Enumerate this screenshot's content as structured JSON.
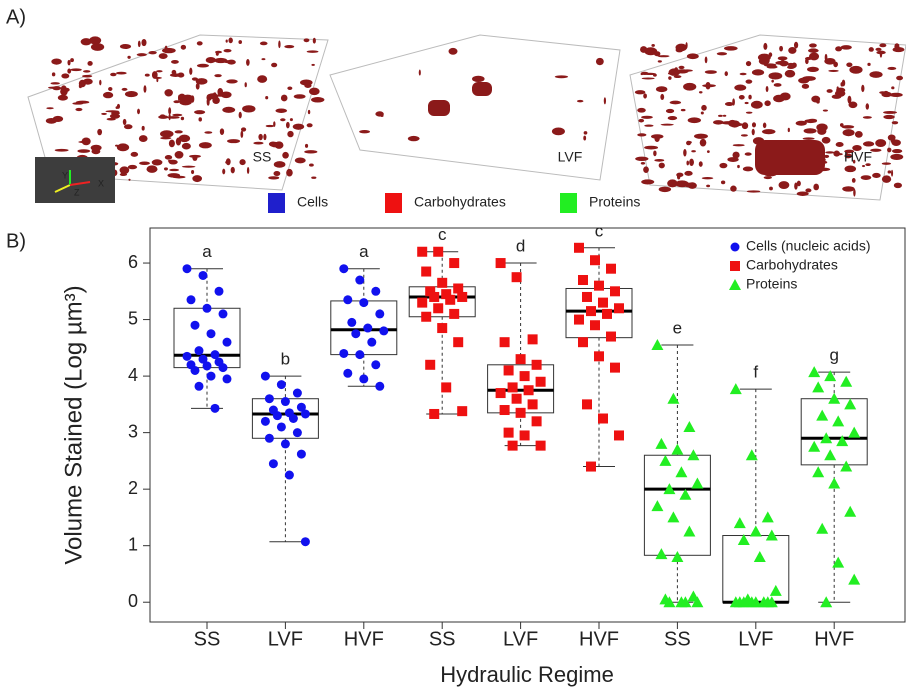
{
  "panel_a": {
    "label": "A)",
    "renders": [
      "SS",
      "LVF",
      "HVF"
    ],
    "axes_widget": [
      "Y",
      "Z",
      "X"
    ],
    "legend": [
      {
        "name": "Cells",
        "color": "#1f1fcc"
      },
      {
        "name": "Carbohydrates",
        "color": "#ee1111"
      },
      {
        "name": "Proteins",
        "color": "#22ee22"
      }
    ]
  },
  "panel_b_label": "B)",
  "chart_data": {
    "type": "box",
    "x_label": "Hydraulic Regime",
    "y_label": "Volume Stained (Log µm³)",
    "ylim": [
      -0.35,
      6.62
    ],
    "yticks": [
      0,
      1,
      2,
      3,
      4,
      5,
      6
    ],
    "legend": "top-right",
    "series": [
      {
        "name": "Cells (nucleic acids)",
        "color": "#1111ee",
        "marker": "circle",
        "categories": [
          "SS",
          "LVF",
          "HVF"
        ],
        "boxes": [
          {
            "min": 3.43,
            "q1": 4.15,
            "median": 4.37,
            "q3": 5.2,
            "max": 5.9,
            "letter": "a",
            "points": [
              5.9,
              5.78,
              5.5,
              5.35,
              5.2,
              5.1,
              4.9,
              4.75,
              4.6,
              4.45,
              4.38,
              4.35,
              4.3,
              4.25,
              4.2,
              4.18,
              4.15,
              4.1,
              4.0,
              3.95,
              3.82,
              3.43
            ]
          },
          {
            "min": 1.07,
            "q1": 2.9,
            "median": 3.33,
            "q3": 3.6,
            "max": 4.0,
            "letter": "b",
            "points": [
              4.0,
              3.85,
              3.7,
              3.6,
              3.55,
              3.45,
              3.4,
              3.35,
              3.33,
              3.3,
              3.25,
              3.2,
              3.1,
              3.0,
              2.9,
              2.8,
              2.62,
              2.45,
              2.25,
              1.07
            ]
          },
          {
            "min": 3.82,
            "q1": 4.38,
            "median": 4.82,
            "q3": 5.33,
            "max": 5.9,
            "letter": "a",
            "points": [
              5.9,
              5.7,
              5.5,
              5.35,
              5.3,
              5.1,
              4.95,
              4.85,
              4.8,
              4.75,
              4.6,
              4.4,
              4.38,
              4.2,
              4.05,
              3.95,
              3.82
            ]
          }
        ]
      },
      {
        "name": "Carbohydrates",
        "color": "#ee1111",
        "marker": "square",
        "categories": [
          "SS",
          "LVF",
          "HVF"
        ],
        "boxes": [
          {
            "min": 3.33,
            "q1": 5.05,
            "median": 5.4,
            "q3": 5.58,
            "max": 6.2,
            "letter": "c",
            "points": [
              6.2,
              6.2,
              6.0,
              5.85,
              5.65,
              5.55,
              5.5,
              5.45,
              5.4,
              5.4,
              5.35,
              5.3,
              5.2,
              5.1,
              5.05,
              4.85,
              4.6,
              4.2,
              3.8,
              3.38,
              3.33
            ]
          },
          {
            "min": 2.77,
            "q1": 3.35,
            "median": 3.75,
            "q3": 4.2,
            "max": 6.0,
            "letter": "d",
            "points": [
              6.0,
              5.75,
              4.65,
              4.6,
              4.3,
              4.2,
              4.1,
              4.0,
              3.9,
              3.8,
              3.75,
              3.7,
              3.6,
              3.5,
              3.4,
              3.35,
              3.2,
              3.0,
              2.95,
              2.77,
              2.77
            ]
          },
          {
            "min": 2.4,
            "q1": 4.68,
            "median": 5.15,
            "q3": 5.55,
            "max": 6.27,
            "letter": "c",
            "points": [
              6.27,
              6.05,
              5.9,
              5.7,
              5.6,
              5.5,
              5.4,
              5.3,
              5.2,
              5.15,
              5.1,
              5.0,
              4.9,
              4.7,
              4.6,
              4.35,
              4.15,
              3.5,
              3.25,
              2.95,
              2.4
            ]
          }
        ]
      },
      {
        "name": "Proteins",
        "color": "#22ee22",
        "marker": "triangle",
        "categories": [
          "SS",
          "LVF",
          "HVF"
        ],
        "boxes": [
          {
            "min": 0,
            "q1": 0.83,
            "median": 2.0,
            "q3": 2.6,
            "max": 4.55,
            "letter": "e",
            "points": [
              4.55,
              3.6,
              3.1,
              2.8,
              2.7,
              2.6,
              2.5,
              2.3,
              2.1,
              2.0,
              1.9,
              1.7,
              1.5,
              1.25,
              0.85,
              0.8,
              0.1,
              0.05,
              0,
              0,
              0,
              0
            ]
          },
          {
            "min": 0,
            "q1": 0,
            "median": 0,
            "q3": 1.18,
            "max": 3.77,
            "letter": "f",
            "points": [
              3.77,
              2.6,
              1.5,
              1.4,
              1.25,
              1.18,
              1.1,
              0.8,
              0.2,
              0.05,
              0,
              0,
              0,
              0,
              0,
              0,
              0,
              0
            ]
          },
          {
            "min": 0,
            "q1": 2.43,
            "median": 2.9,
            "q3": 3.6,
            "max": 4.07,
            "letter": "g",
            "points": [
              4.07,
              4.0,
              3.9,
              3.8,
              3.6,
              3.5,
              3.3,
              3.2,
              3.0,
              2.9,
              2.85,
              2.75,
              2.6,
              2.4,
              2.3,
              2.1,
              1.6,
              1.3,
              0.7,
              0.4,
              0.0
            ]
          }
        ]
      }
    ]
  }
}
